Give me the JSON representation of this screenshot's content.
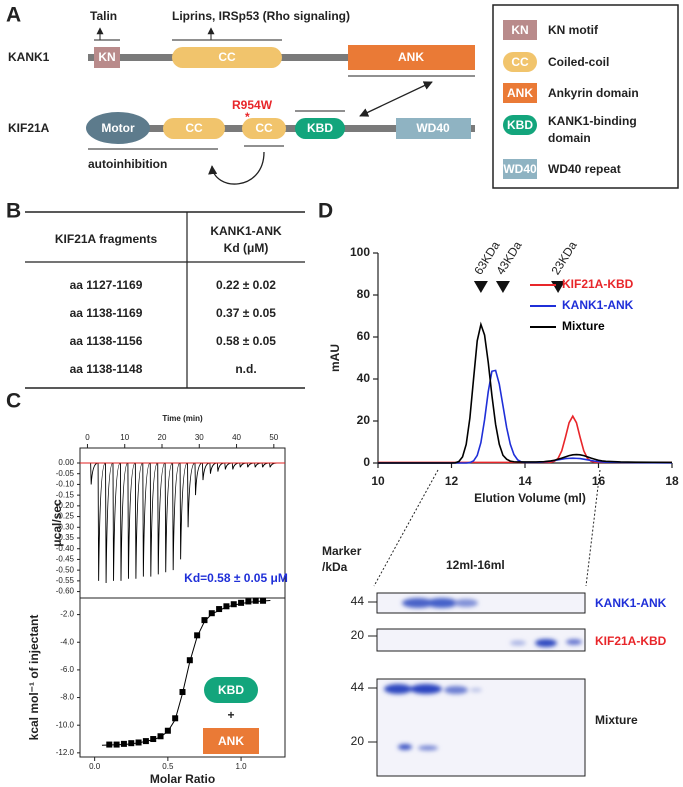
{
  "panel_labels": [
    "A",
    "B",
    "C",
    "D"
  ],
  "panel_a": {
    "kank1": {
      "name": "KANK1",
      "kn": "KN",
      "cc": "CC",
      "ank": "ANK",
      "talin": "Talin",
      "liprins": "Liprins, IRSp53 (Rho signaling)"
    },
    "kif21a": {
      "name": "KIF21A",
      "motor": "Motor",
      "cc1": "CC",
      "cc2": "CC",
      "kbd": "KBD",
      "wd40": "WD40",
      "mutation": "R954W",
      "mutation_star": "*",
      "autoinhibition": "autoinhibition"
    },
    "legend": [
      {
        "key": "KN",
        "lines": [
          "KN motif"
        ]
      },
      {
        "key": "CC",
        "lines": [
          "Coiled-coil"
        ]
      },
      {
        "key": "ANK",
        "lines": [
          "Ankyrin domain"
        ]
      },
      {
        "key": "KBD",
        "lines": [
          "KANK1-binding",
          "domain"
        ]
      },
      {
        "key": "WD40",
        "lines": [
          "WD40 repeat"
        ]
      }
    ]
  },
  "table": {
    "header": [
      "KIF21A fragments",
      [
        "KANK1-ANK",
        "Kd (μM)"
      ]
    ],
    "rows": [
      [
        "aa 1127-1169",
        "0.22 ± 0.02"
      ],
      [
        "aa 1138-1169",
        "0.37 ± 0.05"
      ],
      [
        "aa 1138-1156",
        "0.58 ± 0.05"
      ],
      [
        "aa 1138-1148",
        "n.d."
      ]
    ]
  },
  "chart_data": [
    {
      "type": "injections",
      "x_label": "Time (min)",
      "y_label": "μcal/sec",
      "annotation": "Kd=0.58 ± 0.05 μM",
      "x": [
        1,
        3,
        5,
        7,
        9,
        11,
        13,
        15,
        17,
        19,
        21,
        23,
        25,
        27,
        29,
        31,
        33,
        35,
        37,
        39,
        41,
        43,
        45,
        47,
        49
      ],
      "values": [
        -0.1,
        -0.55,
        -0.56,
        -0.55,
        -0.55,
        -0.54,
        -0.54,
        -0.53,
        -0.53,
        -0.52,
        -0.51,
        -0.5,
        -0.45,
        -0.3,
        -0.15,
        -0.08,
        -0.05,
        -0.04,
        -0.03,
        -0.03,
        -0.02,
        -0.02,
        -0.02,
        -0.02,
        -0.02
      ],
      "color": "#000000",
      "baseline_color": "#e02020",
      "xlim": [
        -2,
        53
      ],
      "xticks": [
        0,
        10,
        20,
        30,
        40,
        50
      ],
      "ylim": [
        -0.63,
        0.07
      ],
      "yticks": [
        {
          "value": 0,
          "label": "0.00"
        },
        {
          "value": -0.05,
          "label": "-0.05"
        },
        {
          "value": -0.1,
          "label": "-0.10"
        },
        {
          "value": -0.15,
          "label": "-0.15"
        },
        {
          "value": -0.2,
          "label": "-0.20"
        },
        {
          "value": -0.25,
          "label": "-0.25"
        },
        {
          "value": -0.3,
          "label": "-0.30"
        },
        {
          "value": -0.35,
          "label": "-0.35"
        },
        {
          "value": -0.4,
          "label": "-0.40"
        },
        {
          "value": -0.45,
          "label": "-0.45"
        },
        {
          "value": -0.5,
          "label": "-0.50"
        },
        {
          "value": -0.55,
          "label": "-0.55"
        },
        {
          "value": -0.6,
          "label": "-0.60"
        }
      ]
    },
    {
      "type": "scatter",
      "x_label": "Molar Ratio",
      "y_label": "kcal mol⁻¹ of injectant",
      "series": [
        {
          "type": "scatter",
          "color": "#000000",
          "x": [
            0.1,
            0.15,
            0.2,
            0.25,
            0.3,
            0.35,
            0.4,
            0.45,
            0.5,
            0.55,
            0.6,
            0.65,
            0.7,
            0.75,
            0.8,
            0.85,
            0.9,
            0.95,
            1.0,
            1.05,
            1.1,
            1.15
          ],
          "values": [
            -11.4,
            -11.4,
            -11.35,
            -11.3,
            -11.25,
            -11.15,
            -11.0,
            -10.8,
            -10.4,
            -9.5,
            -7.6,
            -5.3,
            -3.5,
            -2.4,
            -1.9,
            -1.6,
            -1.4,
            -1.25,
            -1.15,
            -1.05,
            -1.0,
            -1.0
          ]
        },
        {
          "type": "line",
          "color": "#000000",
          "x": [
            0.05,
            0.2,
            0.3,
            0.4,
            0.45,
            0.5,
            0.55,
            0.6,
            0.65,
            0.7,
            0.75,
            0.8,
            0.9,
            1.0,
            1.1,
            1.2
          ],
          "values": [
            -11.45,
            -11.4,
            -11.28,
            -11.05,
            -10.85,
            -10.45,
            -9.6,
            -7.7,
            -5.4,
            -3.6,
            -2.5,
            -1.95,
            -1.45,
            -1.2,
            -1.05,
            -0.98
          ]
        }
      ],
      "xlim": [
        -0.1,
        1.3
      ],
      "xticks": [
        {
          "value": 0,
          "label": "0.0"
        },
        0.5,
        {
          "value": 1,
          "label": "1.0"
        }
      ],
      "ylim": [
        -12.3,
        -0.8
      ],
      "yticks": [
        {
          "value": -2,
          "label": "-2.0"
        },
        {
          "value": -4,
          "label": "-4.0"
        },
        {
          "value": -6,
          "label": "-6.0"
        },
        {
          "value": -8,
          "label": "-8.0"
        },
        {
          "value": -10,
          "label": "-10.0"
        },
        {
          "value": -12,
          "label": "-12.0"
        }
      ],
      "badges": [
        "KBD",
        "+",
        "ANK"
      ]
    },
    {
      "type": "line",
      "x_label": "Elution Volume (ml)",
      "y_label": "mAU",
      "legend": "upper right",
      "x": [
        10,
        11,
        11.5,
        11.8,
        11.9,
        12.0,
        12.1,
        12.2,
        12.3,
        12.4,
        12.5,
        12.6,
        12.7,
        12.8,
        12.9,
        13.0,
        13.1,
        13.2,
        13.3,
        13.4,
        13.5,
        13.6,
        13.7,
        13.8,
        13.9,
        14.0,
        14.1,
        14.2,
        14.3,
        14.4,
        14.5,
        14.6,
        14.7,
        14.8,
        14.9,
        15.0,
        15.1,
        15.2,
        15.3,
        15.4,
        15.5,
        15.6,
        15.7,
        15.8,
        15.9,
        16.0,
        16.1,
        16.2,
        16.6,
        17,
        18
      ],
      "series": [
        {
          "name": "KIF21A-KBD",
          "color": "#e8262a",
          "values": [
            0.3,
            0.3,
            0.3,
            0.3,
            0.3,
            0.3,
            0.3,
            0.3,
            0.3,
            0.3,
            0.3,
            0.3,
            0.3,
            0.3,
            0.3,
            0.3,
            0.3,
            0.3,
            0.3,
            0.3,
            0.3,
            0.3,
            0.3,
            0.3,
            0.3,
            0.3,
            0.3,
            0.3,
            0.3,
            0.3,
            0.3,
            0.3,
            0.3,
            0.8,
            2.2,
            5.8,
            12.2,
            19.2,
            22.3,
            19.2,
            12.2,
            5.8,
            2.2,
            0.8,
            0.4,
            0.3,
            0.3,
            0.3,
            0.3,
            0.3,
            0.3
          ]
        },
        {
          "name": "KANK1-ANK",
          "color": "#1f2fd8",
          "values": [
            0,
            0,
            0,
            0,
            0,
            0,
            0,
            0,
            0,
            0,
            0.2,
            1.0,
            3.6,
            9.7,
            20.6,
            34,
            43.7,
            44.1,
            37.6,
            27.3,
            16.9,
            8.9,
            4.0,
            1.5,
            0.5,
            0.3,
            0.3,
            0.3,
            0.3,
            0.4,
            0.5,
            0.7,
            0.9,
            1.2,
            1.5,
            1.8,
            2.1,
            2.2,
            2.3,
            2.2,
            2.1,
            1.8,
            1.5,
            1.2,
            0.9,
            0.7,
            0.5,
            0.4,
            0.3,
            0.2,
            0.1
          ]
        },
        {
          "name": "Mixture",
          "color": "#000000",
          "values": [
            0,
            0,
            0,
            0,
            0,
            0,
            0.1,
            0.7,
            2.9,
            8.9,
            21.4,
            40,
            58.2,
            66,
            60.9,
            47.9,
            32.1,
            18.4,
            8.9,
            3.7,
            1.8,
            0.9,
            0.6,
            0.5,
            0.5,
            0.5,
            0.5,
            0.5,
            0.5,
            0.6,
            0.6,
            0.8,
            1.0,
            1.3,
            1.8,
            2.3,
            2.9,
            3.5,
            3.9,
            4.0,
            3.9,
            3.5,
            2.9,
            2.3,
            1.8,
            1.3,
            1.0,
            0.8,
            0.5,
            0.4,
            0.3
          ]
        }
      ],
      "markers": [
        {
          "x": 12.8,
          "label": "63KDa"
        },
        {
          "x": 13.4,
          "label": "43KDa"
        },
        {
          "x": 14.9,
          "label": "23KDa"
        }
      ],
      "xlim": [
        10,
        18
      ],
      "xticks": [
        10,
        12,
        14,
        16,
        18
      ],
      "ylim": [
        0,
        100
      ],
      "yticks": [
        0,
        20,
        40,
        60,
        80,
        100
      ]
    }
  ],
  "gels": {
    "marker_label": [
      "Marker",
      "/kDa"
    ],
    "range_label": "12ml-16ml",
    "lanes": [
      {
        "label": "KANK1-ANK",
        "markers": [
          "44"
        ]
      },
      {
        "label": "KIF21A-KBD",
        "markers": [
          "20"
        ]
      },
      {
        "label": "Mixture",
        "markers": [
          "44",
          "20"
        ]
      }
    ]
  }
}
